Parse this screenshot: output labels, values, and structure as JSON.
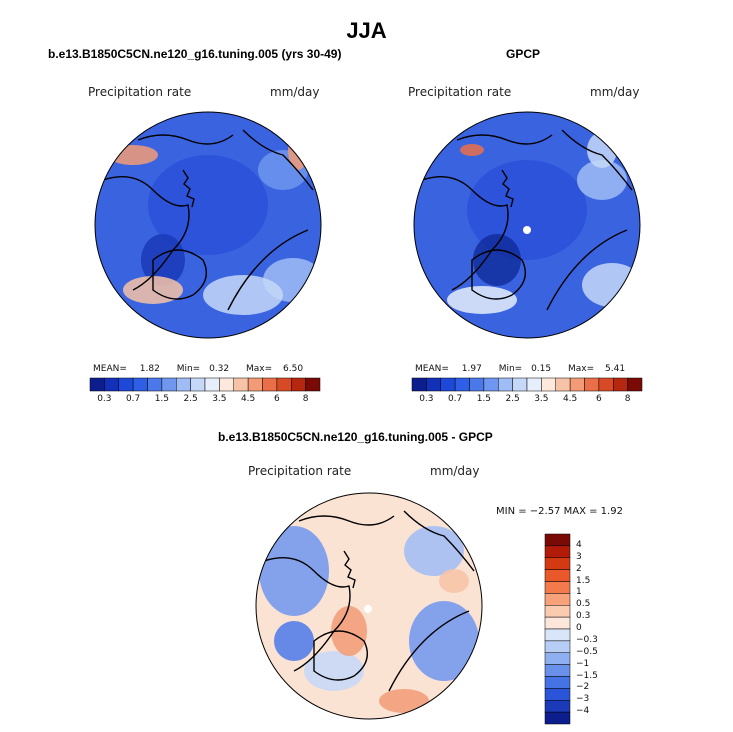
{
  "figure": {
    "title": "JJA"
  },
  "panels": [
    {
      "id": "model",
      "title": "b.e13.B1850C5CN.ne120_g16.tuning.005 (yrs 30-49)",
      "variable": "Precipitation rate",
      "units": "mm/day",
      "stats": {
        "mean_label": "MEAN=",
        "mean": "1.82",
        "min_label": "Min=",
        "min": "0.32",
        "max_label": "Max=",
        "max": "6.50"
      },
      "dominant_color": "#3a63e0"
    },
    {
      "id": "obs",
      "title": "GPCP",
      "variable": "Precipitation rate",
      "units": "mm/day",
      "stats": {
        "mean_label": "MEAN=",
        "mean": "1.97",
        "min_label": "Min=",
        "min": "0.15",
        "max_label": "Max=",
        "max": "5.41"
      },
      "dominant_color": "#3a63e0"
    },
    {
      "id": "diff",
      "title": "b.e13.B1850C5CN.ne120_g16.tuning.005 - GPCP",
      "variable": "Precipitation rate",
      "units": "mm/day",
      "stats_text": "MIN =   −2.57  MAX =    1.92",
      "dominant_color": "#fbe3d4"
    }
  ],
  "colorbar_abs": {
    "colors": [
      "#0c1e8e",
      "#1230b8",
      "#1e48d8",
      "#2e5fe6",
      "#4b79ea",
      "#6f97ef",
      "#9fbcf4",
      "#c5d8f8",
      "#e6eefb",
      "#fde9dc",
      "#f7c3a6",
      "#f29b76",
      "#ea6f49",
      "#d84a25",
      "#b5280f",
      "#7a0a05"
    ],
    "labels": [
      "0.3",
      "0.7",
      "1.5",
      "2.5",
      "3.5",
      "4.5",
      "6",
      "8"
    ]
  },
  "colorbar_diff": {
    "colors": [
      "#7a0a05",
      "#b21b08",
      "#d43a12",
      "#e8582a",
      "#f27a4c",
      "#f7a27a",
      "#fbcbb0",
      "#fde7da",
      "#d9e6fa",
      "#b6cdf5",
      "#8fb0f0",
      "#6a91ea",
      "#4673e3",
      "#2a55d8",
      "#1a3ab8",
      "#0c1e8e"
    ],
    "labels": [
      "4",
      "3",
      "2",
      "1.5",
      "1",
      "0.5",
      "0.3",
      "0",
      "−0.3",
      "−0.5",
      "−1",
      "−1.5",
      "−2",
      "−3",
      "−4"
    ]
  },
  "icons": [
    "polar-map",
    "coastline",
    "color-legend"
  ]
}
